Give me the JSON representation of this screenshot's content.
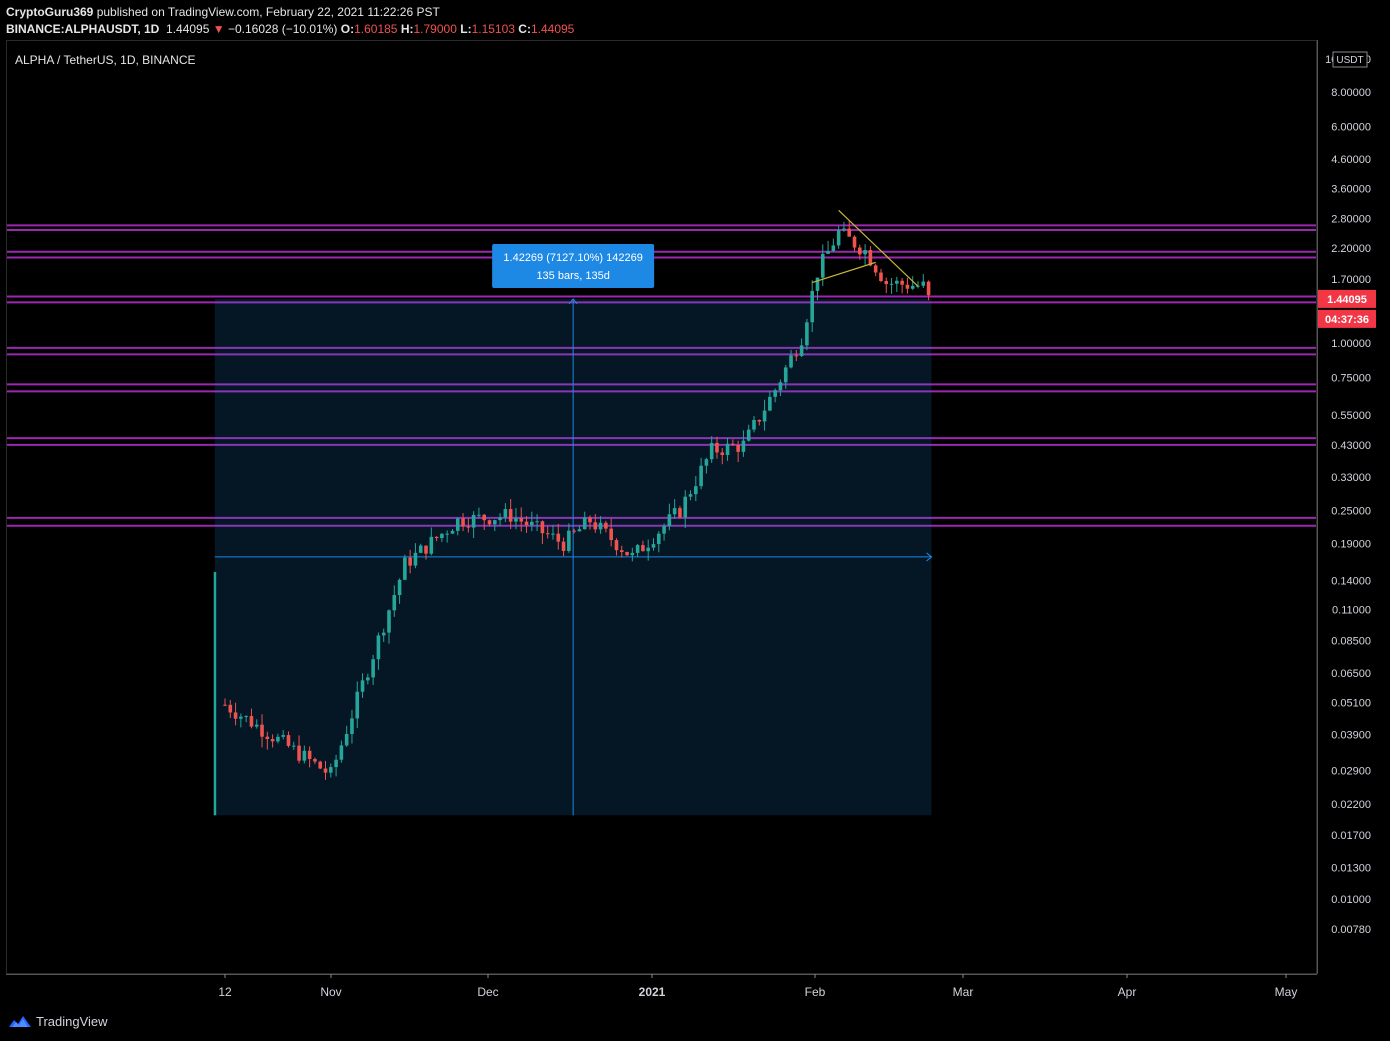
{
  "header": {
    "author": "CryptoGuru369",
    "published_text": "published on TradingView.com, February 22, 2021 11:22:26 PST",
    "symbol": "BINANCE:ALPHAUSDT, 1D",
    "last": "1.44095",
    "change": "−0.16028 (−10.01%)",
    "o_label": "O:",
    "o": "1.60185",
    "h_label": "H:",
    "h": "1.79000",
    "l_label": "L:",
    "l": "1.15103",
    "c_label": "C:",
    "c": "1.44095"
  },
  "chart_title": "ALPHA / TetherUS, 1D, BINANCE",
  "price_axis_unit": "USDT",
  "price_axis_labels": [
    "10.50000",
    "8.00000",
    "6.00000",
    "4.60000",
    "3.60000",
    "2.80000",
    "2.20000",
    "1.70000",
    "1.00000",
    "0.75000",
    "0.55000",
    "0.43000",
    "0.33000",
    "0.25000",
    "0.19000",
    "0.14000",
    "0.11000",
    "0.08500",
    "0.06500",
    "0.05100",
    "0.03900",
    "0.02900",
    "0.02200",
    "0.01700",
    "0.01300",
    "0.01000",
    "0.00780"
  ],
  "current_price_label": "1.44095",
  "countdown_label": "04:37:36",
  "time_axis_labels": [
    "12",
    "Nov",
    "Dec",
    "2021",
    "Feb",
    "Mar",
    "Apr",
    "May"
  ],
  "measure_box": {
    "line1": "1.42269 (7127.10%) 142269",
    "line2": "135 bars, 135d"
  },
  "footer_brand": "TradingView",
  "colors": {
    "up": "#26a69a",
    "down": "#ef5350",
    "level": "#9c27b0",
    "measure": "#1e88e5",
    "trend": "#c9b53a",
    "price_tag": "#f23645"
  },
  "chart_data": {
    "type": "candlestick",
    "scale": "log",
    "title": "ALPHA / TetherUS, 1D, BINANCE",
    "ylim": [
      0.007,
      11
    ],
    "horizontal_levels": [
      [
        2.55,
        2.65
      ],
      [
        2.03,
        2.13
      ],
      [
        1.4,
        1.47
      ],
      [
        0.91,
        0.96
      ],
      [
        0.67,
        0.71
      ],
      [
        0.43,
        0.455
      ],
      [
        0.22,
        0.235
      ]
    ],
    "measurement": {
      "from_price": 0.02,
      "to_price": 1.44,
      "change": "1.42269 (7127.10%)",
      "bars": 135
    },
    "trendlines": [
      {
        "from": [
          "2021-02-05",
          3.0
        ],
        "to": [
          "2021-02-20",
          1.6
        ]
      },
      {
        "from": [
          "2021-01-31",
          1.65
        ],
        "to": [
          "2021-02-12",
          1.95
        ]
      }
    ],
    "anchors": [
      {
        "date": "2020-10-12",
        "price": 0.05
      },
      {
        "date": "2020-11-01",
        "price": 0.028
      },
      {
        "date": "2020-11-15",
        "price": 0.16
      },
      {
        "date": "2020-11-25",
        "price": 0.23
      },
      {
        "date": "2020-12-05",
        "price": 0.24
      },
      {
        "date": "2020-12-15",
        "price": 0.19
      },
      {
        "date": "2020-12-20",
        "price": 0.23
      },
      {
        "date": "2020-12-28",
        "price": 0.17
      },
      {
        "date": "2021-01-06",
        "price": 0.25
      },
      {
        "date": "2021-01-12",
        "price": 0.41
      },
      {
        "date": "2021-01-18",
        "price": 0.43
      },
      {
        "date": "2021-01-24",
        "price": 0.68
      },
      {
        "date": "2021-01-29",
        "price": 1.05
      },
      {
        "date": "2021-02-01",
        "price": 1.8
      },
      {
        "date": "2021-02-05",
        "price": 2.5
      },
      {
        "date": "2021-02-10",
        "price": 2.15
      },
      {
        "date": "2021-02-14",
        "price": 1.65
      },
      {
        "date": "2021-02-21",
        "price": 1.6
      },
      {
        "date": "2021-02-22",
        "price": 1.44
      }
    ]
  }
}
